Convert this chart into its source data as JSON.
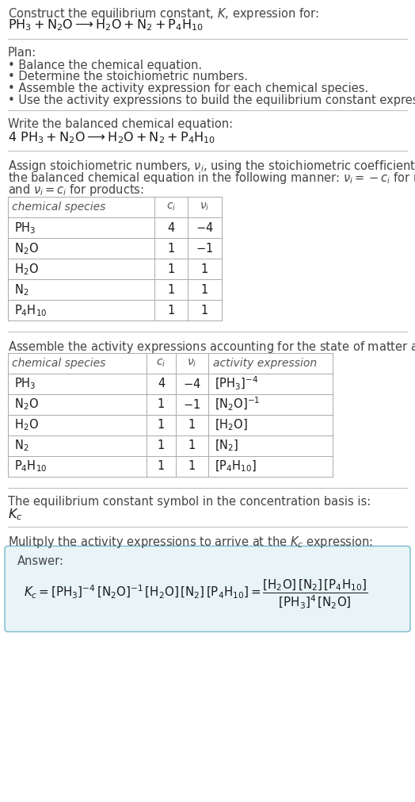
{
  "bg_color": "#ffffff",
  "text_color": "#1a1a1a",
  "gray_text": "#444444",
  "section_bg": "#e8f4f8",
  "section_border": "#7ab8cc",
  "title_line1": "Construct the equilibrium constant, $K$, expression for:",
  "title_line2": "$\\mathrm{PH_3 + N_2O \\longrightarrow H_2O + N_2 + P_4H_{10}}$",
  "plan_header": "Plan:",
  "plan_items": [
    "• Balance the chemical equation.",
    "• Determine the stoichiometric numbers.",
    "• Assemble the activity expression for each chemical species.",
    "• Use the activity expressions to build the equilibrium constant expression."
  ],
  "balanced_header": "Write the balanced chemical equation:",
  "balanced_eq": "$\\mathrm{4\\ PH_3 + N_2O \\longrightarrow H_2O + N_2 + P_4H_{10}}$",
  "stoich_intro": "Assign stoichiometric numbers, $\\nu_i$, using the stoichiometric coefficients, $c_i$, from the balanced chemical equation in the following manner: $\\nu_i = -c_i$ for reactants and $\\nu_i = c_i$ for products:",
  "table1_col_headers": [
    "chemical species",
    "$c_i$",
    "$\\nu_i$"
  ],
  "table1_data": [
    [
      "$\\mathrm{PH_3}$",
      "4",
      "$-4$"
    ],
    [
      "$\\mathrm{N_2O}$",
      "1",
      "$-1$"
    ],
    [
      "$\\mathrm{H_2O}$",
      "1",
      "1"
    ],
    [
      "$\\mathrm{N_2}$",
      "1",
      "1"
    ],
    [
      "$\\mathrm{P_4H_{10}}$",
      "1",
      "1"
    ]
  ],
  "activity_intro": "Assemble the activity expressions accounting for the state of matter and $\\nu_i$:",
  "table2_col_headers": [
    "chemical species",
    "$c_i$",
    "$\\nu_i$",
    "activity expression"
  ],
  "table2_data": [
    [
      "$\\mathrm{PH_3}$",
      "4",
      "$-4$",
      "$[\\mathrm{PH_3}]^{-4}$"
    ],
    [
      "$\\mathrm{N_2O}$",
      "1",
      "$-1$",
      "$[\\mathrm{N_2O}]^{-1}$"
    ],
    [
      "$\\mathrm{H_2O}$",
      "1",
      "1",
      "$[\\mathrm{H_2O}]$"
    ],
    [
      "$\\mathrm{N_2}$",
      "1",
      "1",
      "$[\\mathrm{N_2}]$"
    ],
    [
      "$\\mathrm{P_4H_{10}}$",
      "1",
      "1",
      "$[\\mathrm{P_4H_{10}}]$"
    ]
  ],
  "kc_intro": "The equilibrium constant symbol in the concentration basis is:",
  "kc_symbol": "$K_c$",
  "multiply_intro": "Mulitply the activity expressions to arrive at the $K_c$ expression:",
  "answer_label": "Answer:",
  "answer_eq": "$K_c = [\\mathrm{PH_3}]^{-4}\\,[\\mathrm{N_2O}]^{-1}\\,[\\mathrm{H_2O}]\\,[\\mathrm{N_2}]\\,[\\mathrm{P_4H_{10}}] = \\dfrac{[\\mathrm{H_2O}]\\,[\\mathrm{N_2}]\\,[\\mathrm{P_4H_{10}}]}{[\\mathrm{PH_3}]^4\\,[\\mathrm{N_2O}]}$",
  "fig_width": 5.24,
  "fig_height": 10.11,
  "dpi": 100
}
